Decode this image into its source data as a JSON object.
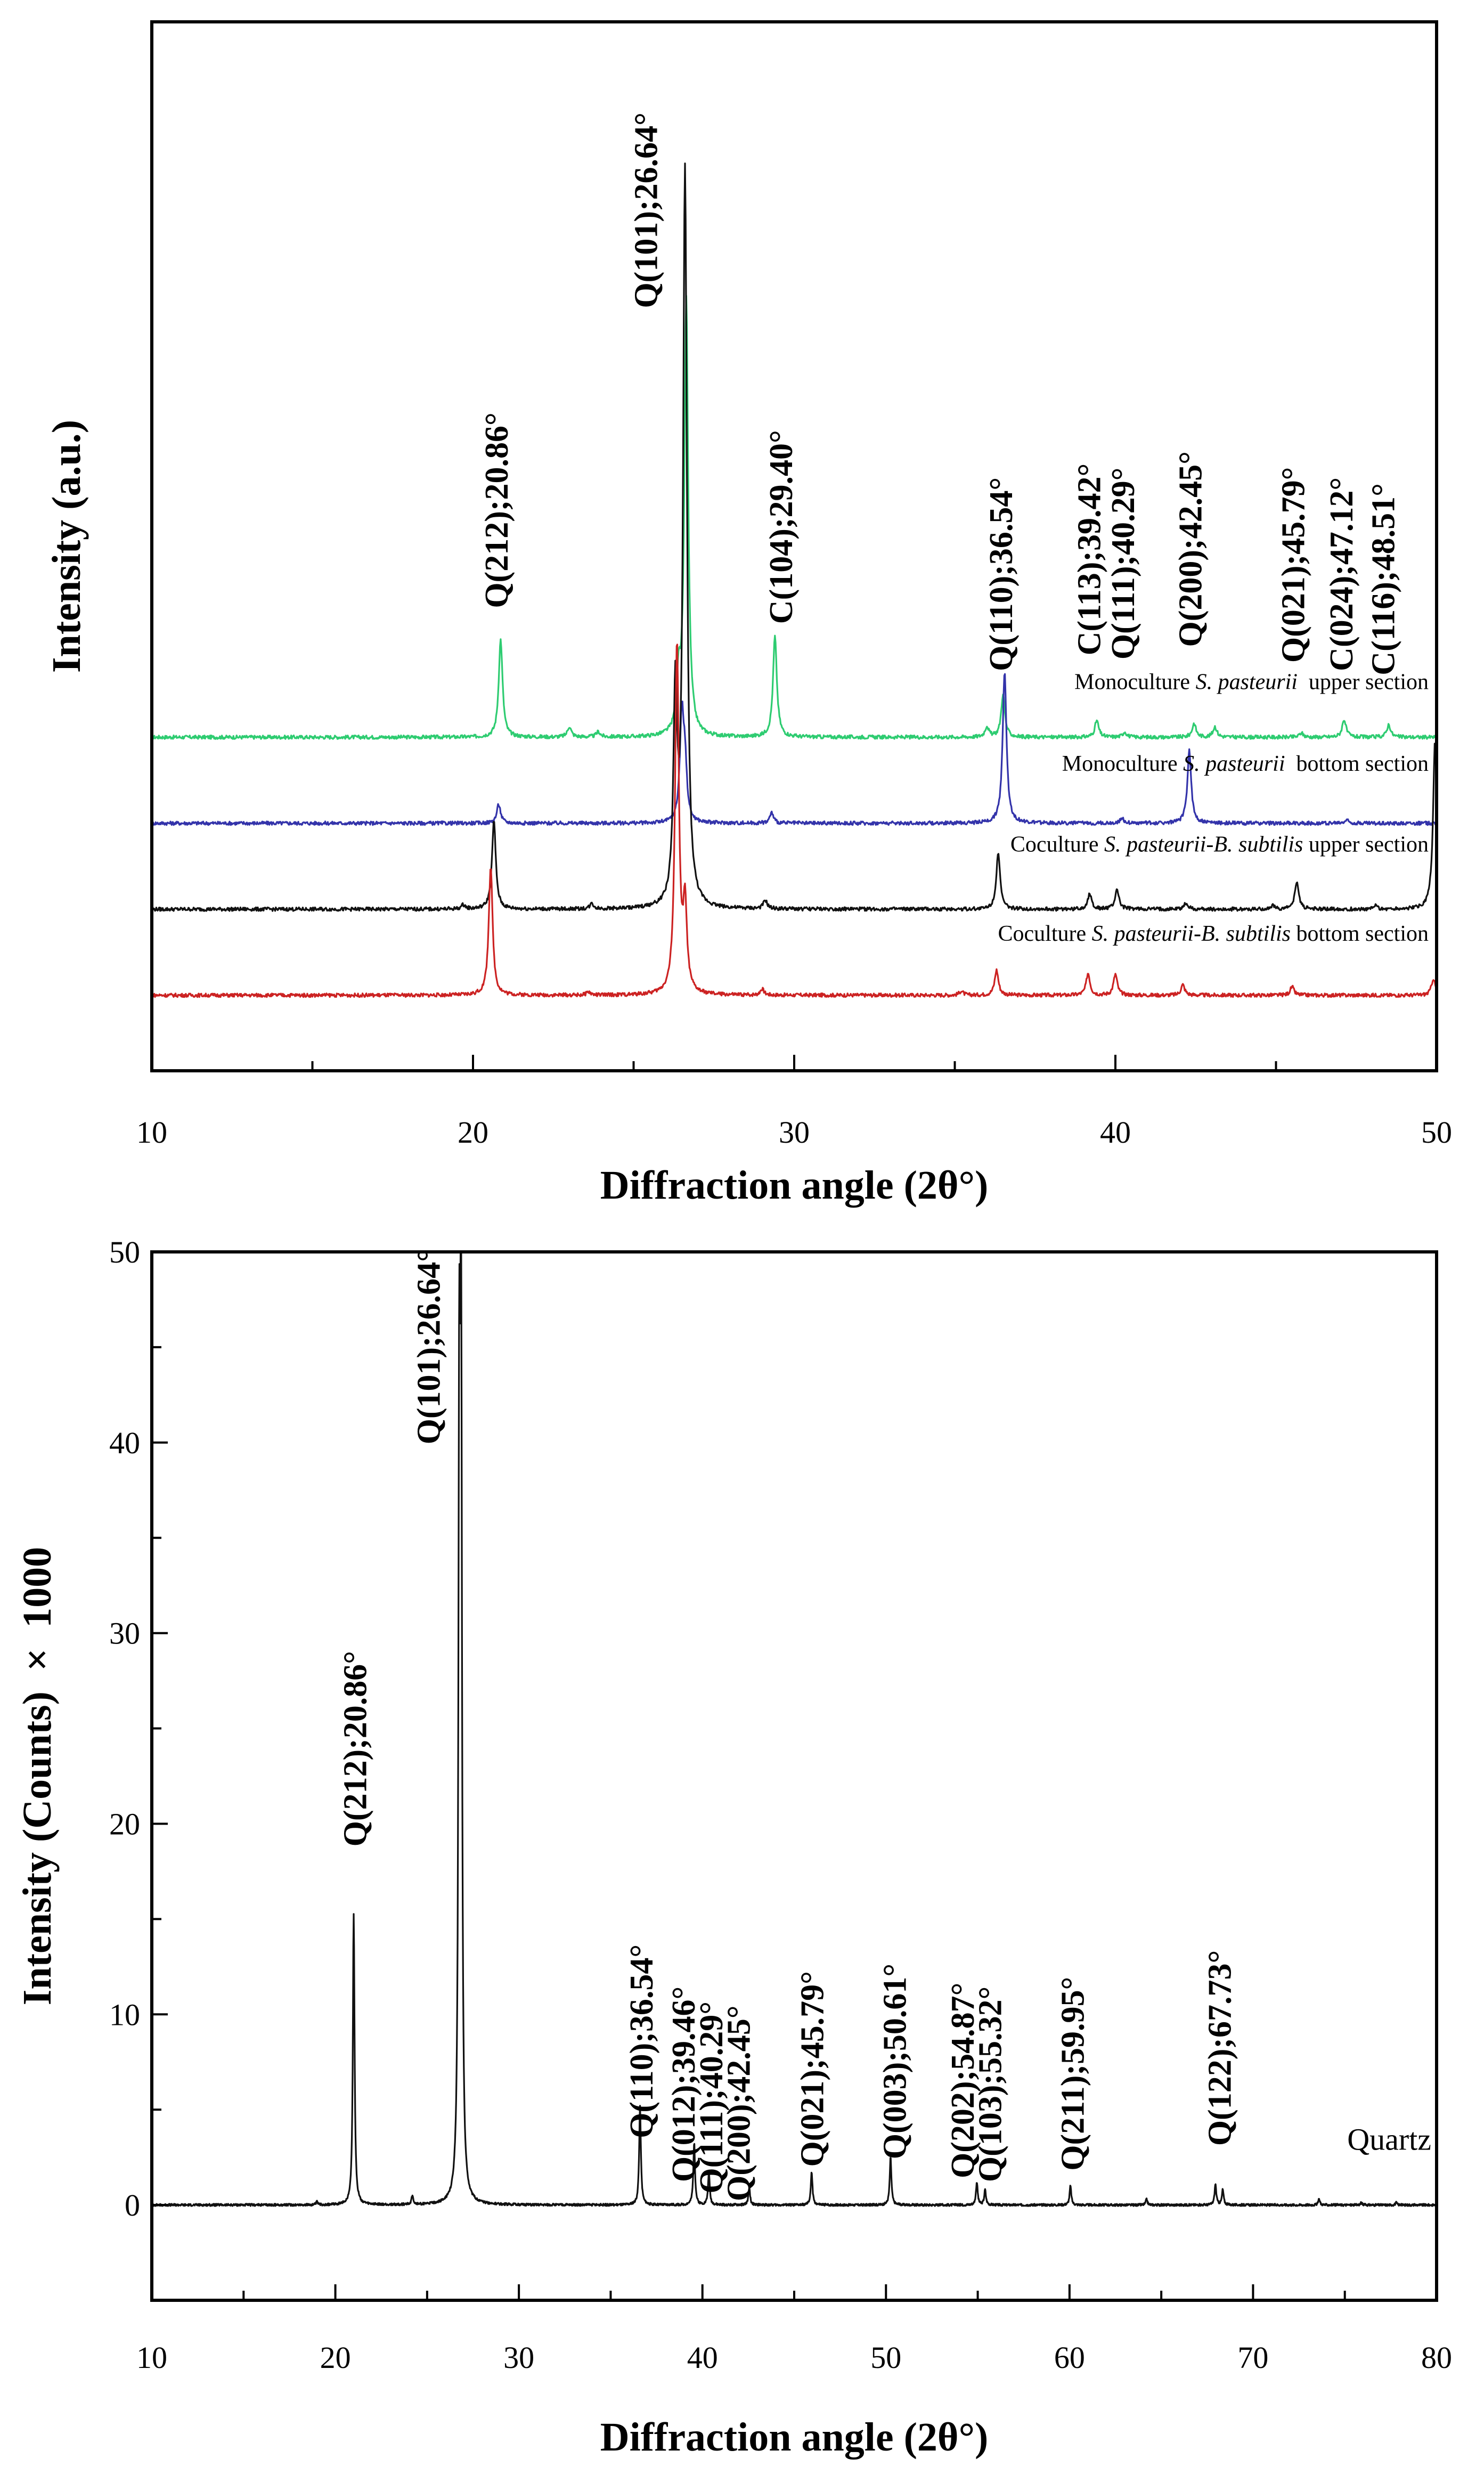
{
  "chart_data": [
    {
      "type": "line",
      "title": "",
      "xlabel": "Diffraction angle (2θ°)",
      "ylabel": "Intensity (a.u.)",
      "xlim": [
        10,
        50
      ],
      "ylim": [
        0,
        100
      ],
      "xticks": [
        10,
        20,
        30,
        40,
        50
      ],
      "yticks_labeled": false,
      "grid": false,
      "series": [
        {
          "name_prefix": "Monoculture ",
          "name_italic": "S. pasteurii",
          "name_suffix": "  upper section",
          "color": "#2ecc71",
          "baseline": 31.8,
          "label_y": 36.4,
          "peaks": [
            [
              20.86,
              9.3
            ],
            [
              23.0,
              1.0
            ],
            [
              23.9,
              0.5
            ],
            [
              26.4,
              5
            ],
            [
              26.64,
              41.6
            ],
            [
              29.4,
              9.6
            ],
            [
              36.0,
              1.0
            ],
            [
              36.5,
              4.0
            ],
            [
              39.42,
              1.6
            ],
            [
              40.29,
              0.5
            ],
            [
              42.45,
              1.3
            ],
            [
              43.1,
              1.0
            ],
            [
              45.79,
              0.4
            ],
            [
              47.12,
              1.7
            ],
            [
              48.51,
              1.2
            ]
          ]
        },
        {
          "name_prefix": "Monoculture ",
          "name_italic": "S. pasteurii",
          "name_suffix": "  bottom section",
          "color": "#3333aa",
          "baseline": 23.6,
          "label_y": 28.6,
          "peaks": [
            [
              20.8,
              1.8
            ],
            [
              26.5,
              10.0
            ],
            [
              26.6,
              5.0
            ],
            [
              29.3,
              1.0
            ],
            [
              36.55,
              14.5
            ],
            [
              40.2,
              0.5
            ],
            [
              42.3,
              7.0
            ],
            [
              47.2,
              0.3
            ]
          ]
        },
        {
          "name_prefix": "Coculture ",
          "name_italic": "S. pasteurii-B. subtilis",
          "name_suffix": " upper section",
          "color": "#111111",
          "baseline": 15.4,
          "label_y": 20.9,
          "peaks": [
            [
              19.7,
              0.4
            ],
            [
              20.65,
              8.4
            ],
            [
              23.7,
              0.5
            ],
            [
              26.3,
              20
            ],
            [
              26.6,
              70.0
            ],
            [
              29.1,
              0.8
            ],
            [
              36.35,
              5.4
            ],
            [
              39.2,
              1.5
            ],
            [
              40.05,
              1.9
            ],
            [
              42.2,
              0.6
            ],
            [
              44.9,
              0.3
            ],
            [
              45.65,
              2.7
            ],
            [
              48.1,
              0.3
            ],
            [
              49.95,
              16.0
            ]
          ]
        },
        {
          "name_prefix": "Coculture ",
          "name_italic": "S. pasteurii-B. subtilis",
          "name_suffix": " bottom section",
          "color": "#cc2222",
          "baseline": 7.2,
          "label_y": 12.4,
          "peaks": [
            [
              20.55,
              12.3
            ],
            [
              23.6,
              0.3
            ],
            [
              26.35,
              33.4
            ],
            [
              26.6,
              8.0
            ],
            [
              29.0,
              0.6
            ],
            [
              35.2,
              0.4
            ],
            [
              36.3,
              2.4
            ],
            [
              39.15,
              2.1
            ],
            [
              40.0,
              2.0
            ],
            [
              42.1,
              1.0
            ],
            [
              45.5,
              0.8
            ],
            [
              49.9,
              1.6
            ]
          ]
        }
      ],
      "annotations": [
        {
          "text": "Q(212);20.86°",
          "x": 20.75,
          "y": 44.1
        },
        {
          "text": "Q(101);26.64°",
          "x": 25.4,
          "y": 72.7
        },
        {
          "text": "C(104);29.40°",
          "x": 29.6,
          "y": 42.6
        },
        {
          "text": "Q(110);36.54°",
          "x": 36.45,
          "y": 38.1
        },
        {
          "text": "C(113);39.42°",
          "x": 39.2,
          "y": 39.6
        },
        {
          "text": "Q(111);40.29°",
          "x": 40.25,
          "y": 39.2
        },
        {
          "text": "Q(200);42.45°",
          "x": 42.35,
          "y": 40.4
        },
        {
          "text": "Q(021);45.79°",
          "x": 45.55,
          "y": 38.9
        },
        {
          "text": "C(024);47.12°",
          "x": 47.05,
          "y": 38.1
        },
        {
          "text": "C(116);48.51°",
          "x": 48.35,
          "y": 37.7
        }
      ]
    },
    {
      "type": "line",
      "title": "",
      "xlabel": "Diffraction angle (2θ°)",
      "ylabel": "Intensity (Counts)  ×  1000",
      "xlim": [
        10,
        80
      ],
      "ylim": [
        -5,
        50
      ],
      "xticks": [
        10,
        20,
        30,
        40,
        50,
        60,
        70,
        80
      ],
      "yticks": [
        0,
        10,
        20,
        30,
        40,
        50
      ],
      "grid": false,
      "series": [
        {
          "name": "Quartz",
          "color": "#111111",
          "baseline": 0,
          "peaks": [
            [
              19.0,
              0.15
            ],
            [
              21.0,
              15.3
            ],
            [
              24.2,
              0.5
            ],
            [
              26.75,
              38
            ],
            [
              26.85,
              46.0
            ],
            [
              36.6,
              5.2
            ],
            [
              39.55,
              3.3
            ],
            [
              40.35,
              1.7
            ],
            [
              42.55,
              0.9
            ],
            [
              45.95,
              1.7
            ],
            [
              50.25,
              2.5
            ],
            [
              54.95,
              1.2
            ],
            [
              55.4,
              0.8
            ],
            [
              60.05,
              1.0
            ],
            [
              64.2,
              0.3
            ],
            [
              67.95,
              1.1
            ],
            [
              68.35,
              0.8
            ],
            [
              73.6,
              0.3
            ],
            [
              75.9,
              0.12
            ],
            [
              77.8,
              0.12
            ]
          ]
        }
      ],
      "legend_text": {
        "text": "Quartz",
        "x": 77.5,
        "y": 2.9
      },
      "annotations": [
        {
          "text": "Q(212);20.86°",
          "x": 21.1,
          "y": 18.8
        },
        {
          "text": "Q(101);26.64°",
          "x": 25.1,
          "y": 39.9
        },
        {
          "text": "Q(110);36.54°",
          "x": 36.7,
          "y": 3.5
        },
        {
          "text": "Q(012);39.46°",
          "x": 39.0,
          "y": 1.2
        },
        {
          "text": "Q(111);40.29°",
          "x": 40.5,
          "y": 0.6
        },
        {
          "text": "Q(200);42.45°",
          "x": 42.0,
          "y": 0.2
        },
        {
          "text": "Q(021);45.79°",
          "x": 46.0,
          "y": 2.0
        },
        {
          "text": "Q(003);50.61°",
          "x": 50.5,
          "y": 2.4
        },
        {
          "text": "Q(202);54.87°",
          "x": 54.2,
          "y": 1.4
        },
        {
          "text": "Q(103);55.32°",
          "x": 55.7,
          "y": 1.2
        },
        {
          "text": "Q(211);59.95°",
          "x": 60.2,
          "y": 1.8
        },
        {
          "text": "Q(122);67.73°",
          "x": 68.2,
          "y": 3.1
        }
      ]
    }
  ]
}
